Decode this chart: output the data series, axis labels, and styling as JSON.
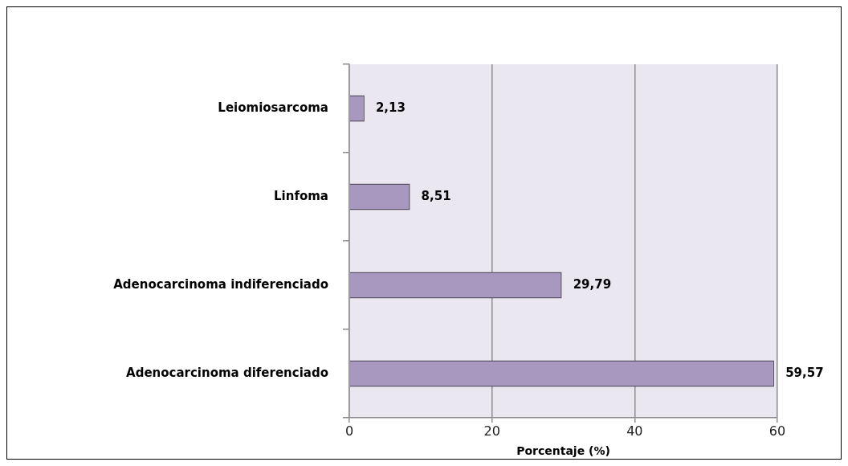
{
  "chart_data": {
    "type": "bar",
    "orientation": "horizontal",
    "xlabel": "Porcentaje (%)",
    "categories": [
      "Leiomiosarcoma",
      "Linfoma",
      "Adenocarcinoma indiferenciado",
      "Adenocarcinoma diferenciado"
    ],
    "values": [
      2.13,
      8.51,
      29.79,
      59.57
    ],
    "value_labels": [
      "2,13",
      "8,51",
      "29,79",
      "59,57"
    ],
    "color": "#a898bf",
    "xlim": [
      0,
      60
    ],
    "xticks": [
      0,
      20,
      40,
      60
    ],
    "grid": "x"
  }
}
